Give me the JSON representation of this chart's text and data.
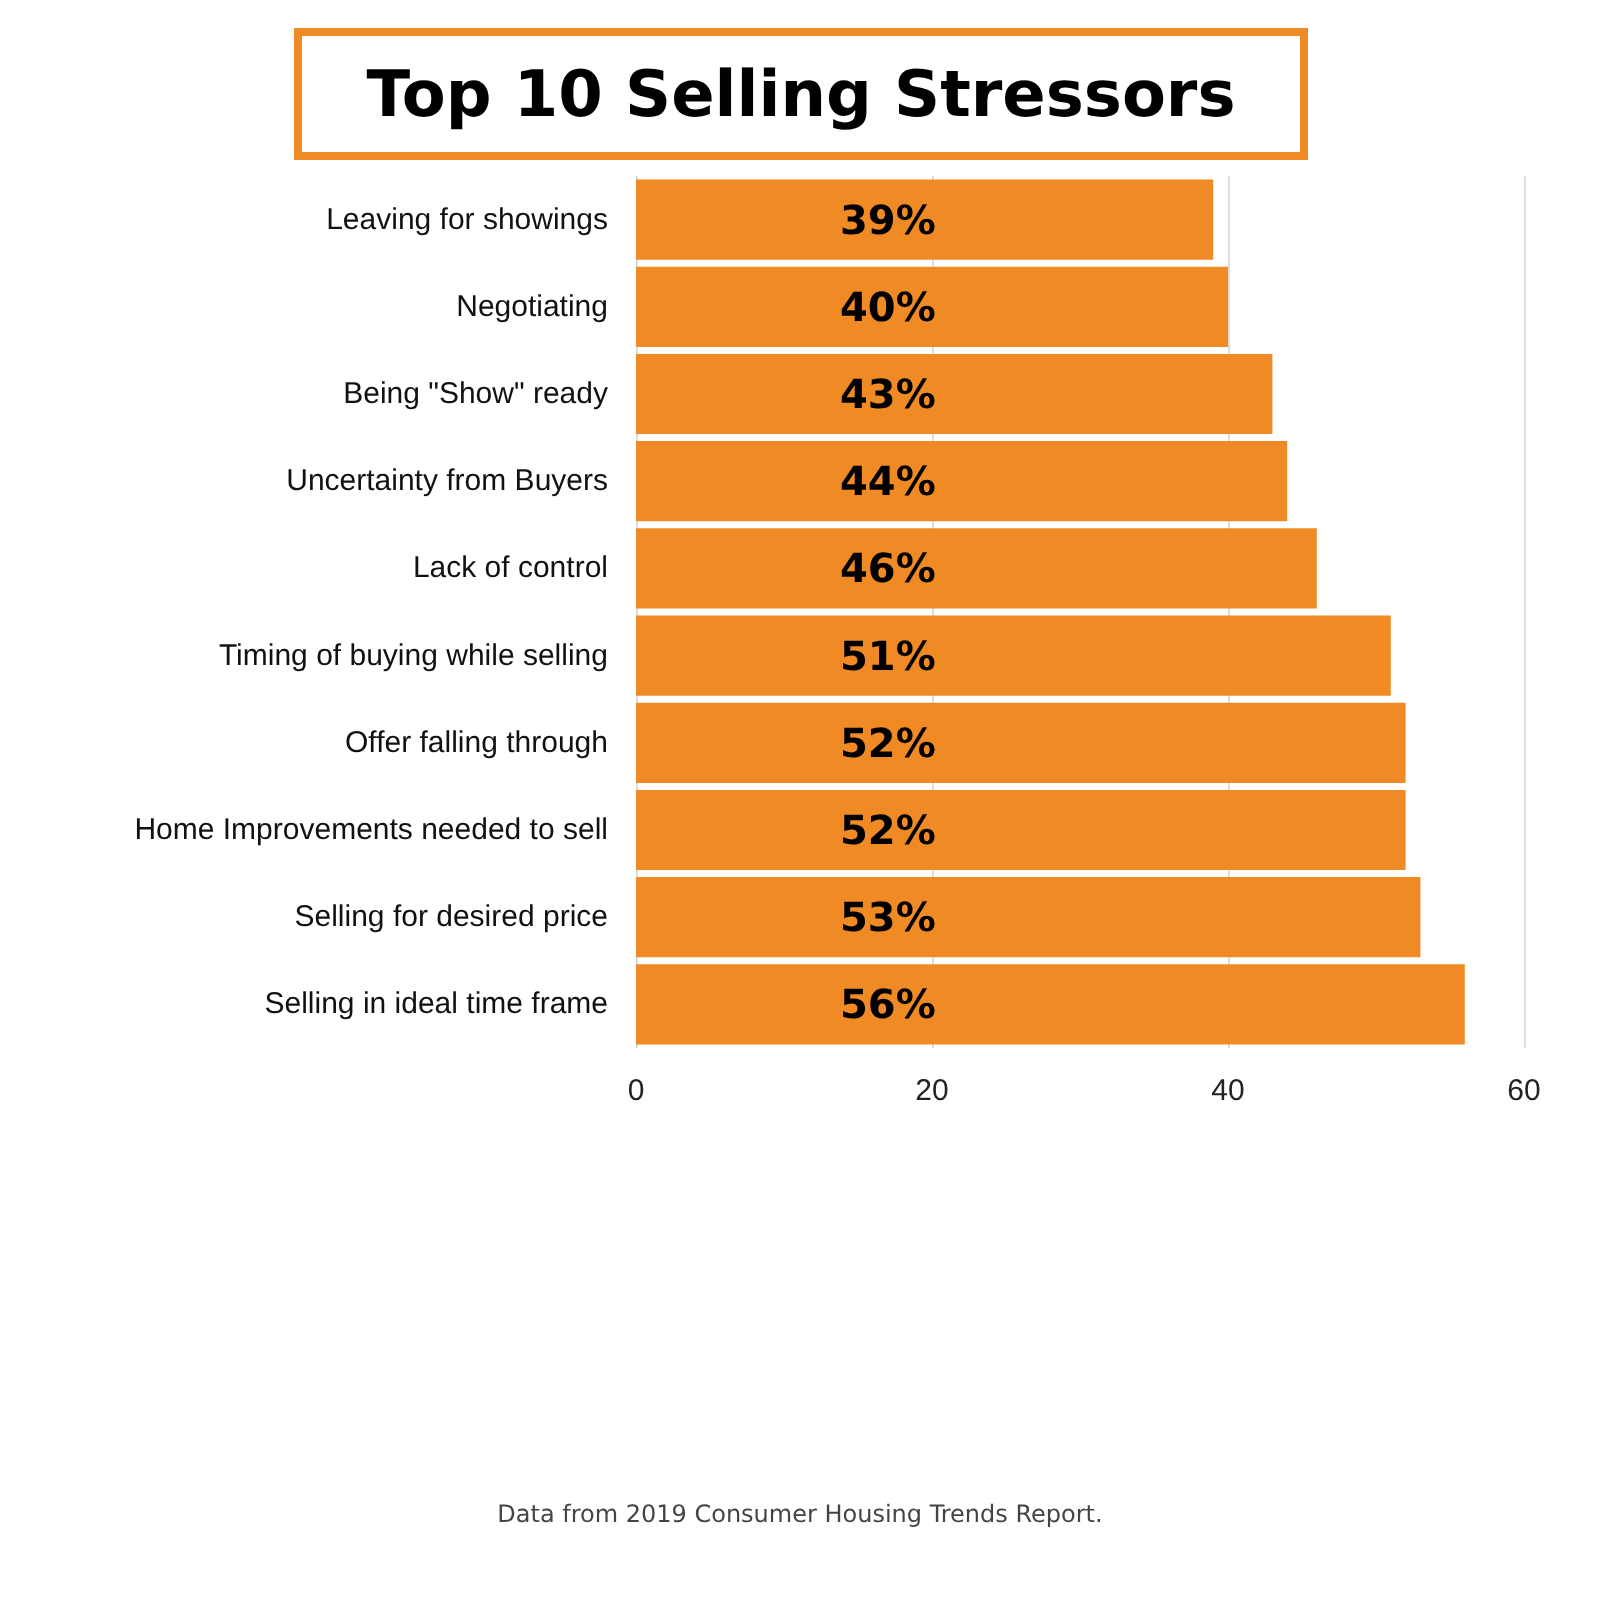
{
  "chart_data": {
    "type": "bar",
    "orientation": "horizontal",
    "title": "Top 10 Selling Stressors",
    "categories": [
      "Leaving for showings",
      "Negotiating",
      "Being \"Show\" ready",
      "Uncertainty from Buyers",
      "Lack of control",
      "Timing of buying while selling",
      "Offer falling through",
      "Home Improvements needed to sell",
      "Selling for desired price",
      "Selling in ideal time frame"
    ],
    "values": [
      39,
      40,
      43,
      44,
      46,
      51,
      52,
      52,
      53,
      56
    ],
    "value_labels": [
      "39%",
      "40%",
      "43%",
      "44%",
      "46%",
      "51%",
      "52%",
      "52%",
      "53%",
      "56%"
    ],
    "color": "#f08a24",
    "xlim": [
      0,
      60
    ],
    "xticks": [
      0,
      20,
      40,
      60
    ],
    "grid": "x",
    "annotations": [
      "Data from 2019 Consumer Housing Trends Report."
    ]
  }
}
